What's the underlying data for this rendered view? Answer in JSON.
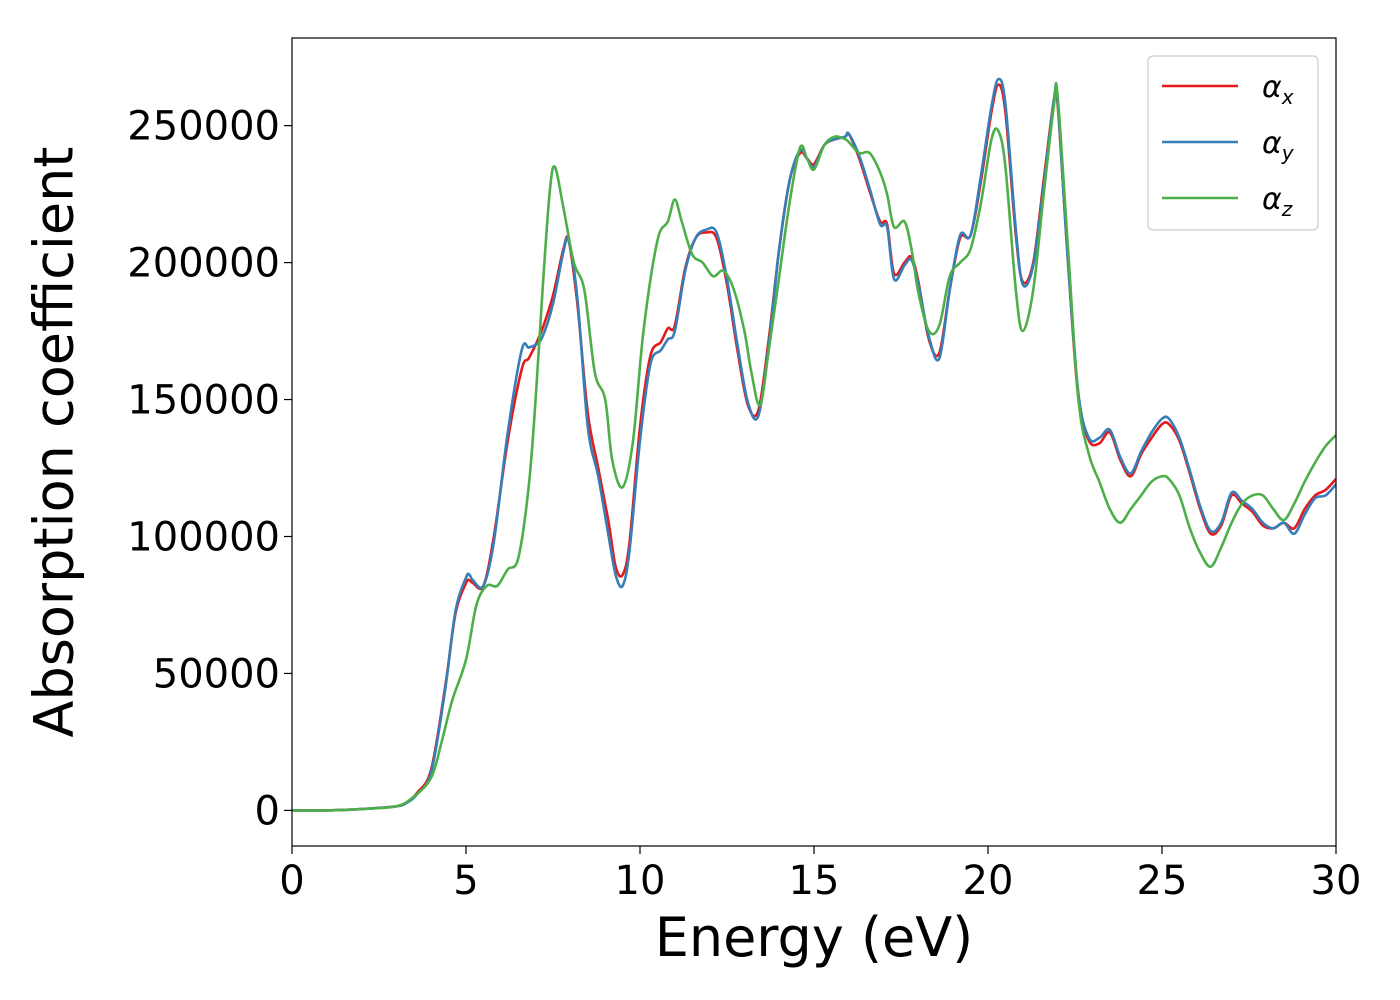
{
  "chart_data": {
    "type": "line",
    "title": "",
    "xlabel": "Energy (eV)",
    "ylabel": "Absorption coefficient",
    "xlim": [
      0,
      30
    ],
    "ylim": [
      -13000,
      282000
    ],
    "xticks": [
      0,
      5,
      10,
      15,
      20,
      25,
      30
    ],
    "yticks": [
      0,
      50000,
      100000,
      150000,
      200000,
      250000
    ],
    "grid": false,
    "legend_position": "top-right",
    "series": [
      {
        "name": "α",
        "subscript": "x",
        "color": "#e41a1c",
        "x": [
          0,
          1,
          2,
          3,
          3.3,
          3.6,
          4.0,
          4.4,
          4.7,
          5.0,
          5.1,
          5.2,
          5.5,
          5.8,
          6.2,
          6.6,
          6.8,
          7.0,
          7.2,
          7.5,
          7.8,
          7.95,
          8.2,
          8.5,
          8.8,
          9.1,
          9.3,
          9.5,
          9.7,
          10.0,
          10.3,
          10.6,
          10.8,
          11.0,
          11.3,
          11.6,
          11.9,
          12.2,
          12.5,
          12.8,
          13.1,
          13.4,
          13.7,
          14.0,
          14.3,
          14.6,
          14.8,
          15.0,
          15.3,
          15.6,
          15.9,
          16.0,
          16.3,
          16.6,
          16.9,
          17.1,
          17.3,
          17.6,
          17.8,
          18.0,
          18.3,
          18.6,
          18.9,
          19.2,
          19.5,
          19.8,
          20.1,
          20.3,
          20.5,
          20.8,
          21.0,
          21.3,
          21.6,
          21.9,
          22.0,
          22.3,
          22.6,
          22.9,
          23.2,
          23.5,
          23.8,
          24.1,
          24.4,
          24.7,
          25.0,
          25.2,
          25.5,
          25.8,
          26.1,
          26.4,
          26.7,
          27.0,
          27.3,
          27.6,
          27.9,
          28.2,
          28.5,
          28.8,
          29.1,
          29.4,
          29.7,
          30.0
        ],
        "y": [
          0,
          0,
          500,
          1500,
          3000,
          6500,
          15000,
          45000,
          72000,
          83000,
          84000,
          83000,
          82000,
          100000,
          135000,
          161000,
          165000,
          170000,
          176000,
          188000,
          205000,
          208000,
          185000,
          145000,
          125000,
          105000,
          89000,
          86000,
          98000,
          140000,
          166000,
          171000,
          176000,
          177000,
          198000,
          209000,
          211000,
          209000,
          192000,
          168000,
          148000,
          146000,
          172000,
          205000,
          230000,
          240000,
          238000,
          236000,
          243000,
          245000,
          246000,
          247000,
          238000,
          226000,
          215000,
          214000,
          196000,
          200000,
          202000,
          193000,
          172000,
          167000,
          190000,
          209000,
          210000,
          230000,
          255000,
          265000,
          255000,
          210000,
          193000,
          200000,
          230000,
          260000,
          258000,
          200000,
          150000,
          135000,
          134000,
          138000,
          128000,
          122000,
          130000,
          136000,
          141000,
          141000,
          135000,
          123000,
          110000,
          101000,
          104000,
          115000,
          112000,
          109000,
          104000,
          103000,
          105000,
          103000,
          110000,
          115000,
          117000,
          121000
        ]
      },
      {
        "name": "α",
        "subscript": "y",
        "color": "#377eb8",
        "x": [
          0,
          1,
          2,
          3,
          3.3,
          3.6,
          4.0,
          4.4,
          4.7,
          5.0,
          5.1,
          5.2,
          5.5,
          5.8,
          6.2,
          6.6,
          6.8,
          7.0,
          7.2,
          7.5,
          7.8,
          7.95,
          8.2,
          8.5,
          8.8,
          9.1,
          9.3,
          9.5,
          9.7,
          10.0,
          10.3,
          10.6,
          10.8,
          11.0,
          11.3,
          11.6,
          11.9,
          12.2,
          12.5,
          12.8,
          13.1,
          13.4,
          13.7,
          14.0,
          14.3,
          14.6,
          14.8,
          15.0,
          15.3,
          15.6,
          15.9,
          16.0,
          16.3,
          16.6,
          16.9,
          17.1,
          17.3,
          17.6,
          17.8,
          18.0,
          18.3,
          18.6,
          18.9,
          19.2,
          19.5,
          19.8,
          20.1,
          20.3,
          20.5,
          20.8,
          21.0,
          21.3,
          21.6,
          21.9,
          22.0,
          22.3,
          22.6,
          22.9,
          23.2,
          23.5,
          23.8,
          24.1,
          24.4,
          24.7,
          25.0,
          25.2,
          25.5,
          25.8,
          26.1,
          26.4,
          26.7,
          27.0,
          27.3,
          27.6,
          27.9,
          28.2,
          28.5,
          28.8,
          29.1,
          29.4,
          29.7,
          30.0
        ],
        "y": [
          0,
          0,
          500,
          1500,
          2800,
          6000,
          14000,
          44000,
          73000,
          85000,
          86000,
          84000,
          82000,
          98000,
          138000,
          168000,
          169000,
          170000,
          173000,
          185000,
          204000,
          208000,
          187000,
          140000,
          122000,
          100000,
          86000,
          82000,
          95000,
          135000,
          163000,
          168000,
          172000,
          175000,
          197000,
          209000,
          212000,
          211000,
          194000,
          170000,
          149000,
          144000,
          170000,
          205000,
          230000,
          241000,
          238000,
          235000,
          243000,
          245000,
          246000,
          247000,
          239000,
          227000,
          214000,
          213000,
          194000,
          199000,
          201000,
          192000,
          173000,
          165000,
          190000,
          210000,
          210000,
          232000,
          257000,
          267000,
          258000,
          212000,
          192000,
          199000,
          228000,
          260000,
          259000,
          200000,
          152000,
          136000,
          136000,
          139000,
          129000,
          123000,
          131000,
          138000,
          143000,
          143000,
          136000,
          124000,
          111000,
          102000,
          105000,
          116000,
          113000,
          110000,
          105000,
          103000,
          105000,
          101000,
          108000,
          114000,
          115000,
          119000
        ]
      },
      {
        "name": "α",
        "subscript": "z",
        "color": "#4daf4a",
        "x": [
          0,
          1,
          2,
          3,
          3.5,
          4.0,
          4.3,
          4.6,
          5.0,
          5.3,
          5.6,
          5.9,
          6.2,
          6.5,
          6.8,
          7.0,
          7.2,
          7.4,
          7.55,
          7.8,
          8.1,
          8.4,
          8.7,
          9.0,
          9.2,
          9.5,
          9.8,
          10.1,
          10.5,
          10.8,
          11.0,
          11.2,
          11.5,
          11.8,
          12.1,
          12.4,
          12.7,
          13.0,
          13.2,
          13.45,
          13.7,
          14.0,
          14.3,
          14.6,
          14.8,
          15.0,
          15.3,
          15.6,
          15.9,
          16.0,
          16.3,
          16.6,
          16.9,
          17.1,
          17.3,
          17.6,
          17.8,
          18.0,
          18.3,
          18.6,
          18.9,
          19.2,
          19.5,
          19.8,
          20.1,
          20.3,
          20.5,
          20.8,
          21.0,
          21.3,
          21.6,
          21.9,
          22.0,
          22.3,
          22.6,
          22.9,
          23.2,
          23.5,
          23.8,
          24.1,
          24.4,
          24.7,
          25.0,
          25.2,
          25.5,
          25.8,
          26.1,
          26.4,
          26.7,
          27.0,
          27.3,
          27.6,
          27.9,
          28.2,
          28.5,
          28.8,
          29.1,
          29.4,
          29.7,
          30.0
        ],
        "y": [
          0,
          0,
          500,
          1500,
          5000,
          12000,
          25000,
          40000,
          55000,
          75000,
          82000,
          82000,
          88000,
          92000,
          118000,
          150000,
          190000,
          225000,
          235000,
          220000,
          200000,
          190000,
          160000,
          150000,
          128000,
          118000,
          135000,
          175000,
          208000,
          215000,
          223000,
          215000,
          203000,
          200000,
          195000,
          197000,
          190000,
          175000,
          160000,
          148000,
          168000,
          195000,
          222000,
          242000,
          238000,
          234000,
          243000,
          246000,
          245000,
          244000,
          240000,
          240000,
          233000,
          225000,
          213000,
          215000,
          205000,
          189000,
          175000,
          177000,
          195000,
          200000,
          205000,
          222000,
          245000,
          248000,
          235000,
          190000,
          175000,
          190000,
          225000,
          258000,
          261000,
          205000,
          150000,
          130000,
          120000,
          110000,
          105000,
          110000,
          115000,
          120000,
          122000,
          121000,
          115000,
          103000,
          94000,
          89000,
          96000,
          105000,
          112000,
          115000,
          115000,
          110000,
          106000,
          112000,
          120000,
          127000,
          133000,
          137000
        ]
      }
    ]
  }
}
